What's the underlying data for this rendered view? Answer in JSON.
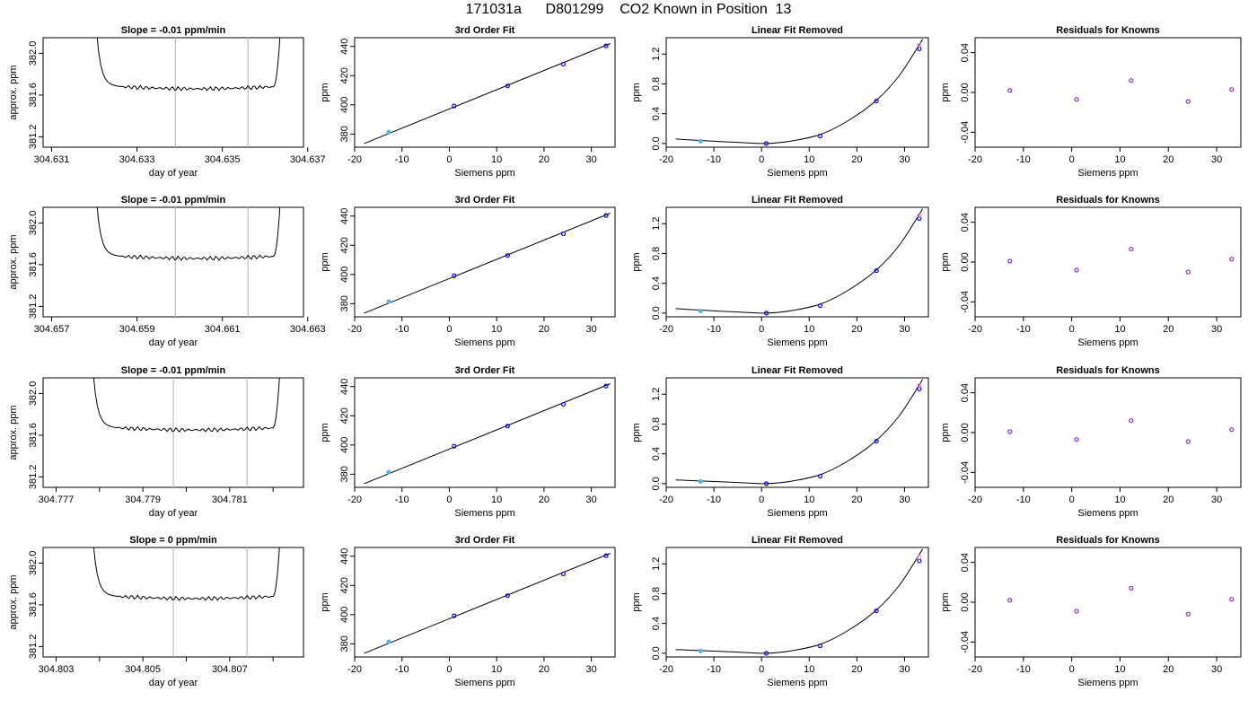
{
  "title": "171031a      D801299    CO2 Known in Position  13",
  "colors": {
    "trace": "#000000",
    "vline": "#bebebe",
    "fit": "#000000",
    "pt_open": "#0000ff",
    "pt_fill": "#56b4e9",
    "pt_resid": "#8a2be2",
    "pt_pink": "#ff7fd0"
  },
  "chart_data": [
    {
      "type": "line",
      "row": 1,
      "title": "Slope =  -0.01  ppm/min",
      "xlabel": "day of year",
      "ylabel": "approx. ppm",
      "xlim": [
        304.6308,
        304.6369
      ],
      "ylim": [
        381.1,
        382.15
      ],
      "xticks": [
        304.631,
        304.633,
        304.635,
        304.637
      ],
      "xticklabels": [
        "304.631",
        "304.633",
        "304.635",
        "304.637"
      ],
      "yticks": [
        381.2,
        381.6,
        382.0
      ],
      "yticklabels": [
        "381.2",
        "381.6",
        "382.0"
      ],
      "trace": {
        "x_start": 304.632,
        "x_flat_start": 304.6326,
        "x_flat_end": 304.6362,
        "x_end": 304.6364,
        "level": 381.68
      },
      "vlines": [
        304.6339,
        304.6356
      ]
    },
    {
      "type": "scatter",
      "row": 1,
      "title": "3rd Order Fit",
      "xlabel": "Siemens ppm",
      "ylabel": "ppm",
      "xlim": [
        -20,
        35
      ],
      "ylim": [
        371,
        446
      ],
      "xticks": [
        -20,
        -10,
        0,
        10,
        20,
        30
      ],
      "yticks": [
        380,
        400,
        420,
        440
      ],
      "points": {
        "x": [
          -12.8,
          1.0,
          12.3,
          24.1,
          33.1
        ],
        "y": [
          381.4,
          399.2,
          413.0,
          427.9,
          440.4
        ]
      },
      "fit": {
        "x": [
          -18,
          34
        ],
        "y": [
          373.5,
          442.0
        ]
      }
    },
    {
      "type": "scatter",
      "row": 1,
      "title": "Linear Fit Removed",
      "xlabel": "Siemens ppm",
      "ylabel": "ppm",
      "xlim": [
        -20,
        35
      ],
      "ylim": [
        -0.05,
        1.42
      ],
      "xticks": [
        -20,
        -10,
        0,
        10,
        20,
        30
      ],
      "yticks": [
        0.0,
        0.4,
        0.8,
        1.2
      ],
      "points": {
        "x": [
          -12.8,
          1.0,
          12.3,
          24.1,
          33.1
        ],
        "y": [
          0.03,
          0.0,
          0.1,
          0.57,
          1.27
        ]
      },
      "extra_points": {
        "x": [
          33.1
        ],
        "y": [
          1.32
        ]
      },
      "fit": {
        "x": [
          -18,
          -12.8,
          -5,
          1.0,
          6,
          12.3,
          18,
          24.1,
          29,
          33.8
        ],
        "y": [
          0.06,
          0.04,
          0.015,
          0.0,
          0.03,
          0.12,
          0.3,
          0.58,
          0.92,
          1.4
        ]
      }
    },
    {
      "type": "scatter",
      "row": 1,
      "title": "Residuals for Knowns",
      "xlabel": "Siemens ppm",
      "ylabel": "ppm",
      "xlim": [
        -20,
        35
      ],
      "ylim": [
        -0.055,
        0.055
      ],
      "xticks": [
        -20,
        -10,
        0,
        10,
        20,
        30
      ],
      "yticks": [
        -0.04,
        0.0,
        0.04
      ],
      "yticklabels": [
        "-0.04",
        "0.00",
        "0.04"
      ],
      "points": {
        "x": [
          -12.8,
          1.0,
          12.3,
          24.1,
          33.1
        ],
        "y": [
          0.002,
          -0.007,
          0.012,
          -0.009,
          0.003
        ]
      }
    },
    {
      "type": "line",
      "row": 2,
      "title": "Slope =  -0.01  ppm/min",
      "xlabel": "day of year",
      "ylabel": "approx. ppm",
      "xlim": [
        304.6568,
        304.6629
      ],
      "ylim": [
        381.1,
        382.15
      ],
      "xticks": [
        304.657,
        304.659,
        304.661,
        304.663
      ],
      "xticklabels": [
        "304.657",
        "304.659",
        "304.661",
        "304.663"
      ],
      "yticks": [
        381.2,
        381.6,
        382.0
      ],
      "yticklabels": [
        "381.2",
        "381.6",
        "382.0"
      ],
      "trace": {
        "x_start": 304.658,
        "x_flat_start": 304.6586,
        "x_flat_end": 304.6622,
        "x_end": 304.6624,
        "level": 381.68
      },
      "vlines": [
        304.6599,
        304.6616
      ]
    },
    {
      "type": "scatter",
      "row": 2,
      "title": "3rd Order Fit",
      "xlabel": "Siemens ppm",
      "ylabel": "ppm",
      "xlim": [
        -20,
        35
      ],
      "ylim": [
        371,
        446
      ],
      "xticks": [
        -20,
        -10,
        0,
        10,
        20,
        30
      ],
      "yticks": [
        380,
        400,
        420,
        440
      ],
      "points": {
        "x": [
          -12.8,
          1.0,
          12.3,
          24.1,
          33.1
        ],
        "y": [
          381.4,
          399.2,
          413.0,
          427.9,
          440.4
        ]
      },
      "fit": {
        "x": [
          -18,
          34
        ],
        "y": [
          373.5,
          442.0
        ]
      }
    },
    {
      "type": "scatter",
      "row": 2,
      "title": "Linear Fit Removed",
      "xlabel": "Siemens ppm",
      "ylabel": "ppm",
      "xlim": [
        -20,
        35
      ],
      "ylim": [
        -0.05,
        1.42
      ],
      "xticks": [
        -20,
        -10,
        0,
        10,
        20,
        30
      ],
      "yticks": [
        0.0,
        0.4,
        0.8,
        1.2
      ],
      "points": {
        "x": [
          -12.8,
          1.0,
          12.3,
          24.1,
          33.1
        ],
        "y": [
          0.03,
          0.0,
          0.1,
          0.57,
          1.27
        ]
      },
      "extra_points": {
        "x": [
          33.1
        ],
        "y": [
          1.31
        ]
      },
      "fit": {
        "x": [
          -18,
          -12.8,
          -5,
          1.0,
          6,
          12.3,
          18,
          24.1,
          29,
          33.8
        ],
        "y": [
          0.06,
          0.04,
          0.015,
          0.0,
          0.03,
          0.12,
          0.3,
          0.58,
          0.92,
          1.4
        ]
      }
    },
    {
      "type": "scatter",
      "row": 2,
      "title": "Residuals for Knowns",
      "xlabel": "Siemens ppm",
      "ylabel": "ppm",
      "xlim": [
        -20,
        35
      ],
      "ylim": [
        -0.055,
        0.055
      ],
      "xticks": [
        -20,
        -10,
        0,
        10,
        20,
        30
      ],
      "yticks": [
        -0.04,
        0.0,
        0.04
      ],
      "yticklabels": [
        "-0.04",
        "0.00",
        "0.04"
      ],
      "points": {
        "x": [
          -12.8,
          1.0,
          12.3,
          24.1,
          33.1
        ],
        "y": [
          0.001,
          -0.008,
          0.013,
          -0.01,
          0.003
        ]
      }
    },
    {
      "type": "line",
      "row": 3,
      "title": "Slope =  -0.01  ppm/min",
      "xlabel": "day of year",
      "ylabel": "approx. ppm",
      "xlim": [
        304.7767,
        304.7827
      ],
      "ylim": [
        381.1,
        382.15
      ],
      "xticks": [
        304.777,
        304.779,
        304.781
      ],
      "xticklabels": [
        "304.777",
        "304.779",
        "304.781"
      ],
      "minor_xticks": [
        304.778,
        304.78,
        304.782
      ],
      "yticks": [
        381.2,
        381.6,
        382.0
      ],
      "yticklabels": [
        "381.2",
        "381.6",
        "382.0"
      ],
      "trace": {
        "x_start": 304.7778,
        "x_flat_start": 304.7784,
        "x_flat_end": 304.782,
        "x_end": 304.7822,
        "level": 381.67
      },
      "vlines": [
        304.7797,
        304.7814
      ]
    },
    {
      "type": "scatter",
      "row": 3,
      "title": "3rd Order Fit",
      "xlabel": "Siemens ppm",
      "ylabel": "ppm",
      "xlim": [
        -20,
        35
      ],
      "ylim": [
        371,
        446
      ],
      "xticks": [
        -20,
        -10,
        0,
        10,
        20,
        30
      ],
      "yticks": [
        380,
        400,
        420,
        440
      ],
      "points": {
        "x": [
          -12.8,
          1.0,
          12.3,
          24.1,
          33.1
        ],
        "y": [
          381.4,
          399.2,
          413.0,
          427.9,
          440.4
        ]
      },
      "fit": {
        "x": [
          -18,
          34
        ],
        "y": [
          373.5,
          442.0
        ]
      }
    },
    {
      "type": "scatter",
      "row": 3,
      "title": "Linear Fit Removed",
      "xlabel": "Siemens ppm",
      "ylabel": "ppm",
      "xlim": [
        -20,
        35
      ],
      "ylim": [
        -0.05,
        1.42
      ],
      "xticks": [
        -20,
        -10,
        0,
        10,
        20,
        30
      ],
      "yticks": [
        0.0,
        0.4,
        0.8,
        1.2
      ],
      "points": {
        "x": [
          -12.8,
          1.0,
          12.3,
          24.1,
          33.1
        ],
        "y": [
          0.03,
          0.0,
          0.1,
          0.57,
          1.27
        ]
      },
      "extra_points": {
        "x": [
          33.1
        ],
        "y": [
          1.32
        ]
      },
      "fit": {
        "x": [
          -18,
          -12.8,
          -5,
          1.0,
          6,
          12.3,
          18,
          24.1,
          29,
          33.8
        ],
        "y": [
          0.05,
          0.035,
          0.015,
          0.0,
          0.03,
          0.12,
          0.3,
          0.58,
          0.92,
          1.4
        ]
      }
    },
    {
      "type": "scatter",
      "row": 3,
      "title": "Residuals for Knowns",
      "xlabel": "Siemens ppm",
      "ylabel": "ppm",
      "xlim": [
        -20,
        35
      ],
      "ylim": [
        -0.055,
        0.055
      ],
      "xticks": [
        -20,
        -10,
        0,
        10,
        20,
        30
      ],
      "yticks": [
        -0.04,
        0.0,
        0.04
      ],
      "yticklabels": [
        "-0.04",
        "0.00",
        "0.04"
      ],
      "points": {
        "x": [
          -12.8,
          1.0,
          12.3,
          24.1,
          33.1
        ],
        "y": [
          0.001,
          -0.007,
          0.012,
          -0.009,
          0.003
        ]
      }
    },
    {
      "type": "line",
      "row": 4,
      "title": "Slope =  0  ppm/min",
      "xlabel": "day of year",
      "ylabel": "approx. ppm",
      "xlim": [
        304.8027,
        304.8087
      ],
      "ylim": [
        381.1,
        382.15
      ],
      "xticks": [
        304.803,
        304.805,
        304.807
      ],
      "xticklabels": [
        "304.803",
        "304.805",
        "304.807"
      ],
      "minor_xticks": [
        304.804,
        304.806,
        304.808
      ],
      "yticks": [
        381.2,
        381.6,
        382.0
      ],
      "yticklabels": [
        "381.2",
        "381.6",
        "382.0"
      ],
      "trace": {
        "x_start": 304.8038,
        "x_flat_start": 304.8044,
        "x_flat_end": 304.808,
        "x_end": 304.8082,
        "level": 381.68
      },
      "vlines": [
        304.8057,
        304.8074
      ]
    },
    {
      "type": "scatter",
      "row": 4,
      "title": "3rd Order Fit",
      "xlabel": "Siemens ppm",
      "ylabel": "ppm",
      "xlim": [
        -20,
        35
      ],
      "ylim": [
        371,
        446
      ],
      "xticks": [
        -20,
        -10,
        0,
        10,
        20,
        30
      ],
      "yticks": [
        380,
        400,
        420,
        440
      ],
      "points": {
        "x": [
          -12.8,
          1.0,
          12.3,
          24.1,
          33.1
        ],
        "y": [
          381.4,
          399.2,
          413.0,
          427.9,
          440.4
        ]
      },
      "fit": {
        "x": [
          -18,
          34
        ],
        "y": [
          373.5,
          442.0
        ]
      }
    },
    {
      "type": "scatter",
      "row": 4,
      "title": "Linear Fit Removed",
      "xlabel": "Siemens ppm",
      "ylabel": "ppm",
      "xlim": [
        -20,
        35
      ],
      "ylim": [
        -0.05,
        1.42
      ],
      "xticks": [
        -20,
        -10,
        0,
        10,
        20,
        30
      ],
      "yticks": [
        0.0,
        0.4,
        0.8,
        1.2
      ],
      "points": {
        "x": [
          -12.8,
          1.0,
          12.3,
          24.1,
          33.1
        ],
        "y": [
          0.03,
          0.0,
          0.1,
          0.57,
          1.24
        ]
      },
      "extra_points": {
        "x": [
          33.1
        ],
        "y": [
          1.29
        ]
      },
      "fit": {
        "x": [
          -18,
          -12.8,
          -5,
          1.0,
          6,
          12.3,
          18,
          24.1,
          29,
          33.8
        ],
        "y": [
          0.05,
          0.035,
          0.015,
          0.0,
          0.03,
          0.12,
          0.3,
          0.58,
          0.92,
          1.4
        ]
      }
    },
    {
      "type": "scatter",
      "row": 4,
      "title": "Residuals for Knowns",
      "xlabel": "Siemens ppm",
      "ylabel": "ppm",
      "xlim": [
        -20,
        35
      ],
      "ylim": [
        -0.055,
        0.055
      ],
      "xticks": [
        -20,
        -10,
        0,
        10,
        20,
        30
      ],
      "yticks": [
        -0.04,
        0.0,
        0.04
      ],
      "yticklabels": [
        "-0.04",
        "0.00",
        "0.04"
      ],
      "points": {
        "x": [
          -12.8,
          1.0,
          12.3,
          24.1,
          33.1
        ],
        "y": [
          0.002,
          -0.009,
          0.014,
          -0.012,
          0.003
        ]
      }
    }
  ]
}
